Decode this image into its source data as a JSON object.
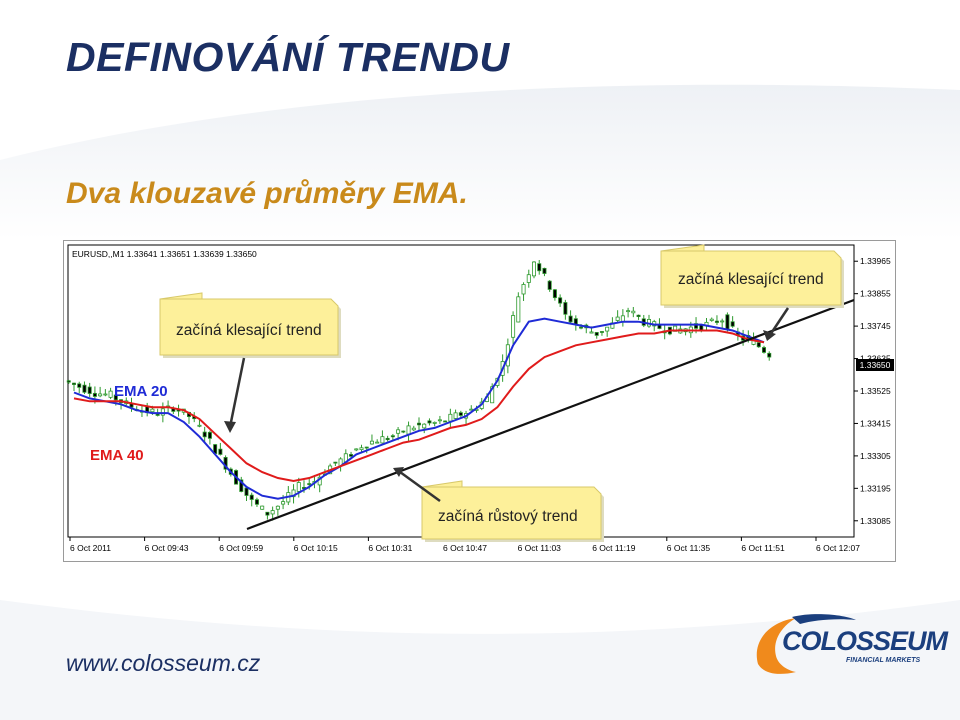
{
  "slide": {
    "title": "DEFINOVÁNÍ TRENDU",
    "subtitle": "Dva klouzavé průměry EMA.",
    "footer_url": "www.colosseum.cz",
    "logo_word": "COLOSSEUM",
    "logo_tagline": "FINANCIAL MARKETS",
    "colors": {
      "title": "#1b2f63",
      "subtitle": "#c98a1b",
      "ema20": "#1f2bd6",
      "ema40": "#e01b1b",
      "candle": "#2e9a2e",
      "trendline": "#111111",
      "callout": "#fdf09a",
      "logo_orange": "#f08a1c",
      "logo_blue": "#1b3f7e"
    }
  },
  "chart_data": {
    "type": "candlestick",
    "header": "EURUSD,,M1  1.33641 1.33651 1.33639 1.33650",
    "ylim": [
      1.3303,
      1.3402
    ],
    "y_ticks": [
      "1.33965",
      "1.33855",
      "1.33745",
      "1.33635",
      "1.33525",
      "1.33415",
      "1.33305",
      "1.33195",
      "1.33085"
    ],
    "x_ticks": [
      "6 Oct 2011",
      "6 Oct 09:43",
      "6 Oct 09:59",
      "6 Oct 10:15",
      "6 Oct 10:31",
      "6 Oct 10:47",
      "6 Oct 11:03",
      "6 Oct 11:19",
      "6 Oct 11:35",
      "6 Oct 11:51",
      "6 Oct 12:07"
    ],
    "current_price": "1.33650",
    "close_values": [
      1.3354,
      1.3352,
      1.3351,
      1.3348,
      1.3346,
      1.3345,
      1.3347,
      1.3344,
      1.3338,
      1.333,
      1.3322,
      1.3315,
      1.3311,
      1.3315,
      1.332,
      1.3322,
      1.3327,
      1.333,
      1.3334,
      1.3336,
      1.3337,
      1.334,
      1.3341,
      1.3342,
      1.3344,
      1.3346,
      1.335,
      1.3362,
      1.3385,
      1.3397,
      1.3388,
      1.3378,
      1.3374,
      1.3372,
      1.3375,
      1.338,
      1.3376,
      1.3374,
      1.3373,
      1.3374,
      1.3375,
      1.3377,
      1.3371,
      1.3369,
      1.3365
    ],
    "series": [
      {
        "name": "EMA 20",
        "values": [
          1.3352,
          1.335,
          1.3349,
          1.3348,
          1.3346,
          1.3345,
          1.3345,
          1.3342,
          1.3337,
          1.3331,
          1.3325,
          1.332,
          1.3317,
          1.3316,
          1.3317,
          1.332,
          1.3324,
          1.3327,
          1.3331,
          1.3333,
          1.3335,
          1.3337,
          1.3339,
          1.334,
          1.3342,
          1.3344,
          1.3348,
          1.3356,
          1.3368,
          1.3376,
          1.3377,
          1.3376,
          1.3375,
          1.3374,
          1.3375,
          1.3376,
          1.3376,
          1.3375,
          1.3375,
          1.3375,
          1.3375,
          1.3374,
          1.3373,
          1.3371,
          1.3369
        ]
      },
      {
        "name": "EMA 40",
        "values": [
          1.335,
          1.3349,
          1.3349,
          1.3349,
          1.3348,
          1.3347,
          1.3347,
          1.3346,
          1.3343,
          1.3338,
          1.3333,
          1.3328,
          1.3325,
          1.3323,
          1.3322,
          1.3323,
          1.3325,
          1.3327,
          1.3329,
          1.3331,
          1.3333,
          1.3335,
          1.3336,
          1.3338,
          1.334,
          1.3341,
          1.3343,
          1.3347,
          1.3354,
          1.336,
          1.3364,
          1.3366,
          1.3368,
          1.3369,
          1.337,
          1.3371,
          1.3372,
          1.3372,
          1.3373,
          1.3373,
          1.3373,
          1.3373,
          1.3372,
          1.337,
          1.3369
        ]
      }
    ],
    "series_labels": [
      "EMA 20",
      "EMA 40"
    ],
    "annotations": [
      "začíná klesající trend",
      "začíná klesající trend",
      "začíná růstový trend"
    ]
  }
}
